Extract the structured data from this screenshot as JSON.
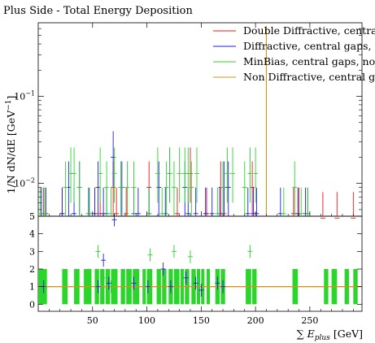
{
  "chart_data": {
    "type": "scatter",
    "title": "Plus Side - Total Energy Deposition",
    "ylabel": "1/N dN/dE [GeV⁻¹]",
    "xlabel": "∑ E_plus [GeV]",
    "xlabel_parts": {
      "sum": "∑",
      "E": "E",
      "sub": "plus",
      "unit": " [GeV]"
    },
    "ylabel_parts": {
      "main": "1/N dN/dE [GeV",
      "sup": "−1",
      "close": "]"
    },
    "x_range": [
      0,
      298
    ],
    "y_log": true,
    "y_range": [
      0.0042,
      0.7
    ],
    "y_ticks": [
      {
        "value": 0.01,
        "base": "10",
        "exp": "−2"
      },
      {
        "value": 0.1,
        "base": "10",
        "exp": "−1"
      }
    ],
    "ratio_ylim": [
      -0.4,
      5
    ],
    "ratio_ticks": [
      "0",
      "1",
      "2",
      "3",
      "4",
      "5"
    ],
    "x_ticks": [
      "50",
      "100",
      "150",
      "200",
      "250"
    ],
    "x_tick_values": [
      50,
      100,
      150,
      200,
      250
    ],
    "legend_position": "top-right",
    "legend": [
      {
        "name": "Double Diffractive, central gaps, no pileup",
        "color": "#e8171a"
      },
      {
        "name": "Diffractive, central gaps, no pileup",
        "color": "#1f1fd6"
      },
      {
        "name": "MinBias, central gaps, no pileup",
        "color": "#2bd62b"
      },
      {
        "name": "Non Diffractive, central gaps, no pileup",
        "color": "#d6921c"
      }
    ],
    "series": [
      {
        "name": "Double Diffractive, central gaps, no pileup",
        "color": "#e8171a",
        "x": [
          5,
          22,
          52,
          57,
          69,
          72,
          81,
          102,
          128,
          140,
          155,
          168,
          171,
          197,
          235,
          240,
          262,
          275,
          290
        ],
        "y": [
          0.0045,
          0.0045,
          0.0045,
          0.0045,
          0.009,
          0.0045,
          0.0045,
          0.009,
          0.0045,
          0.013,
          0.0045,
          0.009,
          0.0045,
          0.009,
          0.0045,
          0.0045,
          0.004,
          0.004,
          0.004
        ]
      },
      {
        "name": "Diffractive, central gaps, no pileup",
        "color": "#1f1fd6",
        "x": [
          3,
          7,
          22,
          28,
          33,
          38,
          47,
          52,
          55,
          60,
          63,
          69,
          77,
          88,
          92,
          102,
          111,
          117,
          121,
          135,
          138,
          145,
          154,
          160,
          167,
          171,
          175,
          193,
          198,
          201,
          223,
          239,
          246,
          248
        ],
        "y": [
          0.0045,
          0.0045,
          0.0045,
          0.009,
          0.0045,
          0.009,
          0.0045,
          0.0045,
          0.009,
          0.0045,
          0.0045,
          0.02,
          0.009,
          0.0045,
          0.0045,
          0.0045,
          0.009,
          0.0045,
          0.013,
          0.009,
          0.0045,
          0.0045,
          0.0045,
          0.0045,
          0.0045,
          0.009,
          0.009,
          0.0045,
          0.0045,
          0.0045,
          0.0045,
          0.0045,
          0.0045,
          0.0045
        ]
      },
      {
        "name": "MinBias, central gaps, no pileup",
        "color": "#2bd62b",
        "x": [
          2,
          6,
          25,
          30,
          33,
          38,
          46,
          57,
          63,
          67,
          70,
          76,
          82,
          88,
          102,
          110,
          114,
          118,
          121,
          125,
          130,
          135,
          138,
          141,
          146,
          165,
          170,
          174,
          179,
          190,
          195,
          200,
          226,
          236,
          242,
          248
        ],
        "y": [
          0.0045,
          0.0045,
          0.009,
          0.013,
          0.013,
          0.009,
          0.0045,
          0.013,
          0.009,
          0.0045,
          0.013,
          0.009,
          0.009,
          0.009,
          0.0045,
          0.013,
          0.0045,
          0.009,
          0.013,
          0.009,
          0.013,
          0.013,
          0.013,
          0.009,
          0.013,
          0.0045,
          0.009,
          0.013,
          0.013,
          0.009,
          0.013,
          0.013,
          0.0045,
          0.009,
          0.0045,
          0.0045
        ]
      },
      {
        "name": "Non Diffractive, central gaps, no pileup",
        "color": "#d6921c",
        "x": [
          210
        ],
        "y": [
          0.009
        ]
      }
    ],
    "ratio": {
      "green_bands": [
        [
          0,
          8
        ],
        [
          22,
          27
        ],
        [
          33,
          38
        ],
        [
          42,
          49
        ],
        [
          52,
          56
        ],
        [
          57,
          61
        ],
        [
          62,
          66
        ],
        [
          67,
          73
        ],
        [
          76,
          80
        ],
        [
          81,
          86
        ],
        [
          87,
          93
        ],
        [
          96,
          99
        ],
        [
          100,
          105
        ],
        [
          109,
          113
        ],
        [
          114,
          118
        ],
        [
          120,
          124
        ],
        [
          125,
          130
        ],
        [
          131,
          134
        ],
        [
          135,
          139
        ],
        [
          141,
          145
        ],
        [
          146,
          149
        ],
        [
          150,
          153
        ],
        [
          155,
          158
        ],
        [
          163,
          167
        ],
        [
          168,
          172
        ],
        [
          191,
          196
        ],
        [
          197,
          201
        ],
        [
          234,
          239
        ],
        [
          263,
          267
        ],
        [
          270,
          275
        ],
        [
          282,
          286
        ],
        [
          290,
          294
        ]
      ],
      "band_range": [
        0.0,
        2.0
      ],
      "reference_y": 1,
      "reference_color": "#d6921c",
      "green_points": {
        "x": [
          5,
          55,
          60,
          67,
          103,
          125,
          140,
          195
        ],
        "y": [
          1.0,
          3.0,
          1.5,
          1.0,
          2.8,
          3.0,
          2.7,
          3.0
        ]
      },
      "blue_points": {
        "x": [
          5,
          55,
          60,
          65,
          70,
          88,
          101,
          115,
          122,
          136,
          145,
          150,
          165,
          170
        ],
        "y": [
          1.0,
          1.0,
          2.5,
          1.2,
          4.8,
          1.2,
          1.0,
          2.0,
          1.0,
          1.5,
          1.2,
          0.8,
          1.2,
          1.0
        ]
      }
    }
  }
}
